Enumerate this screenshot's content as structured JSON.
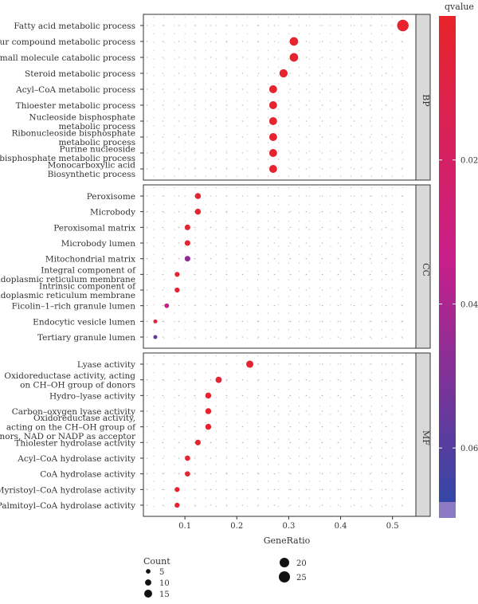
{
  "chart_data": {
    "type": "scatter",
    "xlabel": "GeneRatio",
    "x_ticks": [
      "0.1",
      "0.2",
      "0.3",
      "0.4",
      "0.5"
    ],
    "xlim": [
      0.02,
      0.545
    ],
    "panels": [
      {
        "name": "BP",
        "terms": [
          {
            "label": [
              "Fatty acid metabolic process"
            ],
            "gene_ratio": 0.52,
            "count": 26,
            "qvalue": 0.001
          },
          {
            "label": [
              "Sulfur compound metabolic process"
            ],
            "gene_ratio": 0.31,
            "count": 17,
            "qvalue": 0.002
          },
          {
            "label": [
              "Small molecule catabolic process"
            ],
            "gene_ratio": 0.31,
            "count": 17,
            "qvalue": 0.002
          },
          {
            "label": [
              "Steroid metabolic process"
            ],
            "gene_ratio": 0.29,
            "count": 16,
            "qvalue": 0.002
          },
          {
            "label": [
              "Acyl–CoA metabolic process"
            ],
            "gene_ratio": 0.27,
            "count": 15,
            "qvalue": 0.002
          },
          {
            "label": [
              "Thioester metabolic process"
            ],
            "gene_ratio": 0.27,
            "count": 15,
            "qvalue": 0.002
          },
          {
            "label": [
              "Nucleoside bisphosphate",
              "metabolic process"
            ],
            "gene_ratio": 0.27,
            "count": 15,
            "qvalue": 0.002
          },
          {
            "label": [
              "Ribonucleoside bisphosphate",
              "metabolic process"
            ],
            "gene_ratio": 0.27,
            "count": 15,
            "qvalue": 0.002
          },
          {
            "label": [
              "Purine nucleoside",
              "bisphosphate metabolic process"
            ],
            "gene_ratio": 0.27,
            "count": 15,
            "qvalue": 0.002
          },
          {
            "label": [
              "Monocarboxylic acid",
              "Biosynthetic process"
            ],
            "gene_ratio": 0.27,
            "count": 15,
            "qvalue": 0.002
          }
        ]
      },
      {
        "name": "CC",
        "terms": [
          {
            "label": [
              "Peroxisome"
            ],
            "gene_ratio": 0.125,
            "count": 9,
            "qvalue": 0.002
          },
          {
            "label": [
              "Microbody"
            ],
            "gene_ratio": 0.125,
            "count": 9,
            "qvalue": 0.002
          },
          {
            "label": [
              "Peroxisomal matrix"
            ],
            "gene_ratio": 0.105,
            "count": 8,
            "qvalue": 0.002
          },
          {
            "label": [
              "Microbody lumen"
            ],
            "gene_ratio": 0.105,
            "count": 8,
            "qvalue": 0.002
          },
          {
            "label": [
              "Mitochondrial matrix"
            ],
            "gene_ratio": 0.105,
            "count": 8,
            "qvalue": 0.047
          },
          {
            "label": [
              "Integral component of",
              "endoplasmic reticulum membrane"
            ],
            "gene_ratio": 0.085,
            "count": 6,
            "qvalue": 0.004
          },
          {
            "label": [
              "Intrinsic component of",
              "endoplasmic reticulum membrane"
            ],
            "gene_ratio": 0.085,
            "count": 6,
            "qvalue": 0.004
          },
          {
            "label": [
              "Ficolin–1–rich granule lumen"
            ],
            "gene_ratio": 0.065,
            "count": 5,
            "qvalue": 0.033
          },
          {
            "label": [
              "Endocytic vesicle lumen"
            ],
            "gene_ratio": 0.043,
            "count": 3,
            "qvalue": 0.008
          },
          {
            "label": [
              "Tertiary granule lumen"
            ],
            "gene_ratio": 0.043,
            "count": 3,
            "qvalue": 0.058
          }
        ]
      },
      {
        "name": "MF",
        "terms": [
          {
            "label": [
              "Lyase activity"
            ],
            "gene_ratio": 0.225,
            "count": 13,
            "qvalue": 0.002
          },
          {
            "label": [
              "Oxidoreductase activity, acting",
              "on CH–OH group of donors"
            ],
            "gene_ratio": 0.165,
            "count": 10,
            "qvalue": 0.002
          },
          {
            "label": [
              "Hydro–lyase activity"
            ],
            "gene_ratio": 0.145,
            "count": 9,
            "qvalue": 0.002
          },
          {
            "label": [
              "Carbon–oxygen lyase activity"
            ],
            "gene_ratio": 0.145,
            "count": 9,
            "qvalue": 0.002
          },
          {
            "label": [
              "Oxidoreductase activity,",
              "acting on the CH–OH group of",
              "donors, NAD or NADP as acceptor"
            ],
            "gene_ratio": 0.145,
            "count": 9,
            "qvalue": 0.002
          },
          {
            "label": [
              "Thiolester hydrolase activity"
            ],
            "gene_ratio": 0.125,
            "count": 8,
            "qvalue": 0.002
          },
          {
            "label": [
              "Acyl–CoA hydrolase activity"
            ],
            "gene_ratio": 0.105,
            "count": 7,
            "qvalue": 0.002
          },
          {
            "label": [
              "CoA hydrolase activity"
            ],
            "gene_ratio": 0.105,
            "count": 7,
            "qvalue": 0.002
          },
          {
            "label": [
              "Myristoyl–CoA hydrolase activity"
            ],
            "gene_ratio": 0.085,
            "count": 6,
            "qvalue": 0.002
          },
          {
            "label": [
              "Palmitoyl–CoA hydrolase activity"
            ],
            "gene_ratio": 0.085,
            "count": 6,
            "qvalue": 0.002
          }
        ]
      }
    ],
    "color_legend": {
      "title": "qvalue",
      "ticks": [
        "0.02",
        "0.04",
        "0.06"
      ],
      "tick_values": [
        0.02,
        0.04,
        0.06
      ],
      "range": [
        0.0,
        0.0675
      ],
      "low_color": "#e8242a",
      "mid_color": "#c81e8a",
      "high_color": "#3347a6",
      "bottom_swatch_color": "#8c7bc4"
    },
    "size_legend": {
      "title": "Count",
      "items": [
        {
          "label": "5",
          "value": 5
        },
        {
          "label": "10",
          "value": 10
        },
        {
          "label": "15",
          "value": 15
        },
        {
          "label": "20",
          "value": 20
        },
        {
          "label": "25",
          "value": 25
        }
      ]
    },
    "grid": "dotted",
    "strip_color": "#d9d9d9",
    "legend_position": "right"
  }
}
